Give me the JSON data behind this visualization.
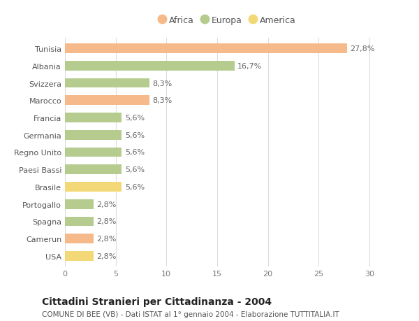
{
  "categories": [
    "Tunisia",
    "Albania",
    "Svizzera",
    "Marocco",
    "Francia",
    "Germania",
    "Regno Unito",
    "Paesi Bassi",
    "Brasile",
    "Portogallo",
    "Spagna",
    "Camerun",
    "USA"
  ],
  "values": [
    27.8,
    16.7,
    8.3,
    8.3,
    5.6,
    5.6,
    5.6,
    5.6,
    5.6,
    2.8,
    2.8,
    2.8,
    2.8
  ],
  "labels": [
    "27,8%",
    "16,7%",
    "8,3%",
    "8,3%",
    "5,6%",
    "5,6%",
    "5,6%",
    "5,6%",
    "5,6%",
    "2,8%",
    "2,8%",
    "2,8%",
    "2,8%"
  ],
  "continents": [
    "Africa",
    "Europa",
    "Europa",
    "Africa",
    "Europa",
    "Europa",
    "Europa",
    "Europa",
    "America",
    "Europa",
    "Europa",
    "Africa",
    "America"
  ],
  "colors": {
    "Africa": "#F5B98A",
    "Europa": "#B5CC8E",
    "America": "#F2D877"
  },
  "legend_order": [
    "Africa",
    "Europa",
    "America"
  ],
  "xlim": [
    0,
    32
  ],
  "xticks": [
    0,
    5,
    10,
    15,
    20,
    25,
    30
  ],
  "title": "Cittadini Stranieri per Cittadinanza - 2004",
  "subtitle": "COMUNE DI BEE (VB) - Dati ISTAT al 1° gennaio 2004 - Elaborazione TUTTITALIA.IT",
  "background_color": "#ffffff",
  "grid_color": "#dddddd",
  "bar_height": 0.55,
  "label_fontsize": 8,
  "tick_fontsize": 8,
  "title_fontsize": 10,
  "subtitle_fontsize": 7.5
}
